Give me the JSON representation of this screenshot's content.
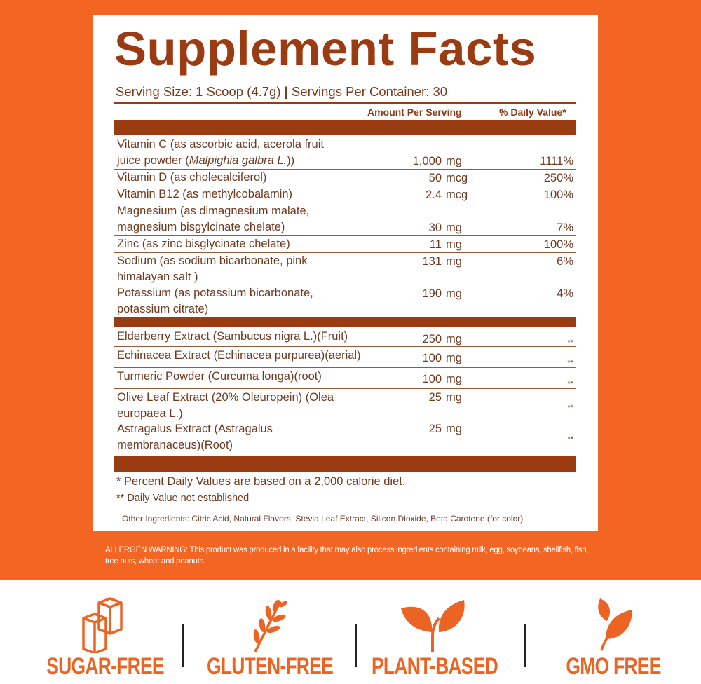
{
  "title": "Supplement Facts",
  "serving": {
    "size": "Serving Size: 1 Scoop (4.7g)",
    "sep": "|",
    "per_container": "Servings Per Container: 30"
  },
  "headers": {
    "amount": "Amount Per Serving",
    "dv": "% Daily Value*"
  },
  "rows": [
    {
      "name": "Vitamin C (as ascorbic acid, acerola fruit juice powder (",
      "name_italic": "Malpighia galbra L.",
      "name_end": "))",
      "amount": "1,000",
      "unit": "mg",
      "dv": "1111%"
    },
    {
      "name": "Vitamin D (as cholecalciferol)",
      "amount": "50",
      "unit": "mcg",
      "dv": "250%"
    },
    {
      "name": "Vitamin B12 (as methylcobalamin)",
      "amount": "2.4",
      "unit": "mcg",
      "dv": "100%"
    },
    {
      "name": "Magnesium (as dimagnesium malate, magnesium bisgylcinate chelate)",
      "amount": "30",
      "unit": "mg",
      "dv": "7%"
    },
    {
      "name": "Zinc (as zinc bisglycinate chelate)",
      "amount": "11",
      "unit": "mg",
      "dv": "100%"
    },
    {
      "name": "Sodium (as sodium bicarbonate, pink himalayan salt )",
      "amount": "131",
      "unit": "mg",
      "dv": "6%"
    },
    {
      "name": "Potassium (as potassium bicarbonate, potassium citrate)",
      "amount": "190",
      "unit": "mg",
      "dv": "4%"
    },
    {
      "name": "Elderberry Extract (Sambucus nigra L.)(Fruit)",
      "amount": "250",
      "unit": "mg",
      "dv": "**"
    },
    {
      "name": "Echinacea Extract (Echinacea purpurea)(aerial)",
      "amount": "100",
      "unit": "mg",
      "dv": "**"
    },
    {
      "name": "Turmeric Powder (Curcuma longa)(root)",
      "amount": "100",
      "unit": "mg",
      "dv": "**"
    },
    {
      "name": "Olive Leaf Extract (20% Oleuropein) (Olea europaea L.)",
      "amount": "25",
      "unit": "mg",
      "dv": "**"
    },
    {
      "name": "Astragalus Extract (Astragalus membranaceus)(Root)",
      "amount": "25",
      "unit": "mg",
      "dv": "**"
    }
  ],
  "footnotes": {
    "dv": "* Percent Daily Values are based on a 2,000 calorie diet.",
    "not_established": "** Daily Value not established",
    "other": "Other Ingredients: Citric Acid, Natural Flavors, Stevia Leaf Extract, Silicon Dioxide, Beta Carotene (for color)"
  },
  "allergen": "ALLERGEN WARNING: This product was produced in a facility that may also process ingredients containing milk, egg, soybeans, shellfish, fish, tree nuts, wheat and peanuts.",
  "badges": [
    {
      "label": "SUGAR-FREE",
      "icon": "sugar-cubes-icon"
    },
    {
      "label": "GLUTEN-FREE",
      "icon": "wheat-icon"
    },
    {
      "label": "PLANT-BASED",
      "icon": "sprout-icon"
    },
    {
      "label": "GMO FREE",
      "icon": "leaf-icon"
    }
  ],
  "colors": {
    "orange": "#f26522",
    "brown": "#9a3b12",
    "text": "#6e3a20",
    "badge": "#ec6424"
  }
}
